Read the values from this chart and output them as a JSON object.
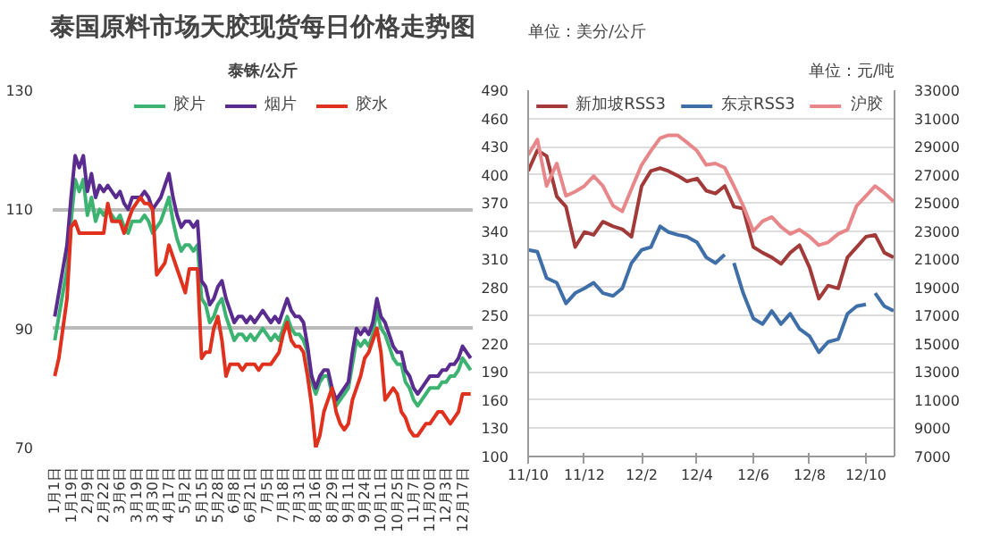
{
  "chart_data": [
    {
      "type": "line",
      "title": "泰国原料市场天胶现货每日价格走势图",
      "subtitle": "泰铢/公斤",
      "categories": [
        "1月1日",
        null,
        null,
        null,
        "1月19日",
        null,
        null,
        null,
        "2月9日",
        null,
        null,
        null,
        "2月22日",
        null,
        null,
        null,
        "3月6日",
        null,
        null,
        null,
        "3月19日",
        null,
        null,
        null,
        "3月30日",
        null,
        null,
        null,
        "4月17日",
        null,
        null,
        null,
        "5月2日",
        null,
        null,
        null,
        "5月15日",
        null,
        null,
        null,
        "5月28日",
        null,
        null,
        null,
        "6月8日",
        null,
        null,
        null,
        "6月21日",
        null,
        null,
        null,
        "7月5日",
        null,
        null,
        null,
        "7月18日",
        null,
        null,
        null,
        "7月31日",
        null,
        null,
        null,
        "8月16日",
        null,
        null,
        null,
        "8月29日",
        null,
        null,
        null,
        "9月11日",
        null,
        null,
        null,
        "9月24日",
        null,
        null,
        null,
        "10月11日",
        null,
        null,
        null,
        "10月25日",
        null,
        null,
        null,
        "11月7日",
        null,
        null,
        null,
        "11月20日",
        null,
        null,
        null,
        "12月3日",
        null,
        null,
        null,
        "12月17日",
        null,
        null
      ],
      "series": [
        {
          "name": "胶片",
          "color": "#3cb371",
          "values": [
            88,
            92,
            96,
            100,
            108,
            115,
            113,
            115,
            109,
            112,
            108,
            110,
            109,
            110,
            109,
            108,
            109,
            107,
            106,
            108,
            108,
            108,
            109,
            108,
            106,
            107,
            108,
            110,
            112,
            108,
            105,
            103,
            104,
            104,
            103,
            104,
            95,
            94,
            91,
            92,
            94,
            95,
            92,
            90,
            88,
            89,
            89,
            88,
            89,
            88,
            89,
            90,
            89,
            88,
            89,
            88,
            90,
            92,
            90,
            89,
            89,
            88,
            86,
            81,
            79,
            81,
            82,
            82,
            79,
            77,
            78,
            79,
            80,
            84,
            88,
            87,
            88,
            87,
            89,
            93,
            90,
            89,
            87,
            85,
            84,
            84,
            81,
            80,
            78,
            77,
            78,
            79,
            80,
            80,
            80,
            81,
            81,
            82,
            82,
            83,
            85,
            84,
            83
          ]
        },
        {
          "name": "烟片",
          "color": "#5b2c8f",
          "values": [
            92,
            96,
            100,
            104,
            112,
            119,
            117,
            119,
            113,
            116,
            112,
            114,
            113,
            114,
            113,
            112,
            113,
            111,
            110,
            112,
            112,
            112,
            113,
            112,
            110,
            111,
            112,
            114,
            116,
            112,
            109,
            107,
            108,
            108,
            107,
            108,
            98,
            97,
            94,
            95,
            97,
            98,
            95,
            93,
            91,
            92,
            92,
            91,
            92,
            91,
            92,
            93,
            92,
            91,
            92,
            91,
            93,
            95,
            93,
            92,
            92,
            91,
            87,
            82,
            80,
            82,
            83,
            83,
            80,
            78,
            79,
            80,
            81,
            86,
            90,
            89,
            90,
            89,
            91,
            95,
            92,
            91,
            89,
            87,
            86,
            86,
            83,
            82,
            80,
            79,
            80,
            81,
            82,
            82,
            82,
            83,
            83,
            84,
            84,
            85,
            87,
            86,
            85
          ]
        },
        {
          "name": "胶水",
          "color": "#e0301e",
          "values": [
            82,
            85,
            90,
            95,
            107,
            108,
            106,
            106,
            106,
            106,
            106,
            106,
            106,
            111,
            108,
            108,
            108,
            106,
            108,
            110,
            111,
            112,
            111,
            111,
            110,
            99,
            100,
            101,
            104,
            102,
            100,
            98,
            96,
            100,
            100,
            100,
            85,
            86,
            86,
            90,
            92,
            88,
            82,
            84,
            84,
            84,
            83,
            84,
            84,
            84,
            83,
            84,
            84,
            84,
            85,
            86,
            89,
            91,
            88,
            87,
            87,
            86,
            82,
            77,
            70,
            72,
            76,
            78,
            80,
            76,
            74,
            73,
            74,
            78,
            80,
            82,
            85,
            86,
            88,
            90,
            86,
            78,
            79,
            80,
            79,
            76,
            75,
            73,
            72,
            72,
            73,
            74,
            74,
            75,
            76,
            76,
            75,
            74,
            75,
            76,
            79,
            79,
            79
          ]
        }
      ],
      "ylim": [
        70,
        130
      ],
      "yticks": [
        70,
        90,
        110,
        130
      ],
      "grid": "y",
      "legend": "top"
    },
    {
      "type": "line",
      "ylabel": "单位：美分/公斤",
      "y2label": "单位：元/吨",
      "x": [
        "2011-10-01",
        "2011-10-11",
        "2011-10-21",
        "2011-11-01",
        "2011-11-11",
        "2011-11-21",
        "2011-12-01",
        "2011-12-11",
        "2011-12-21",
        "2012-01-01",
        "2012-01-11",
        "2012-01-21",
        "2012-02-01",
        "2012-02-11",
        "2012-02-21",
        "2012-03-01",
        "2012-03-11",
        "2012-03-21",
        "2012-04-01",
        "2012-04-11",
        "2012-04-21",
        "2012-05-01",
        "2012-05-11",
        "2012-05-21",
        "2012-06-01",
        "2012-06-11",
        "2012-06-21",
        "2012-07-01",
        "2012-07-11",
        "2012-07-21",
        "2012-08-01",
        "2012-08-11",
        "2012-08-21",
        "2012-09-01",
        "2012-09-11",
        "2012-09-21",
        "2012-10-01",
        "2012-10-11",
        "2012-10-21",
        "2012-10-31"
      ],
      "series": [
        {
          "name": "新加坡RSS3",
          "color": "#a33a3a",
          "values": [
            404,
            426,
            420,
            377,
            366,
            323,
            339,
            336,
            350,
            345,
            342,
            334,
            388,
            404,
            407,
            404,
            399,
            393,
            396,
            383,
            380,
            388,
            366,
            364,
            323,
            317,
            312,
            305,
            317,
            325,
            301,
            268,
            282,
            279,
            312,
            323,
            334,
            336,
            317,
            312
          ]
        },
        {
          "name": "东京RSS3",
          "color": "#3f6fa8",
          "x": [
            "2011-10-01",
            "2011-10-11",
            "2011-10-21",
            "2011-11-01",
            "2011-11-11",
            "2011-11-21",
            "2011-12-01",
            "2011-12-11",
            "2011-12-21",
            "2012-01-01",
            "2012-01-11",
            "2012-01-21",
            "2012-02-01",
            "2012-02-11",
            "2012-02-21",
            "2012-03-01",
            "2012-03-11",
            "2012-03-21",
            "2012-04-01",
            "2012-04-11",
            "2012-04-21",
            "2012-05-01",
            "2012-05-06",
            "2012-05-11",
            "2012-05-21",
            "2012-06-01",
            "2012-06-11",
            "2012-06-21",
            "2012-07-01",
            "2012-07-11",
            "2012-07-21",
            "2012-08-01",
            "2012-08-11",
            "2012-08-21",
            "2012-09-01",
            "2012-09-11",
            "2012-09-21",
            "2012-10-01",
            "2012-10-06",
            "2012-10-11",
            "2012-10-21",
            "2012-10-31"
          ],
          "values": [
            320,
            318,
            290,
            285,
            263,
            274,
            279,
            285,
            274,
            271,
            279,
            306,
            320,
            323,
            345,
            339,
            336,
            334,
            328,
            312,
            306,
            315,
            null,
            306,
            274,
            247,
            241,
            255,
            241,
            252,
            236,
            228,
            211,
            222,
            225,
            252,
            260,
            262,
            null,
            274,
            260,
            255
          ]
        },
        {
          "name": "沪胶",
          "color": "#e8878a",
          "axis": "y2",
          "values": [
            28400,
            29500,
            26200,
            27800,
            25500,
            25800,
            26200,
            26900,
            26200,
            24800,
            24400,
            26000,
            27700,
            28700,
            29600,
            29800,
            29800,
            29300,
            28700,
            27700,
            27800,
            27500,
            26200,
            24800,
            23000,
            23700,
            24000,
            23300,
            22800,
            23100,
            22600,
            22000,
            22200,
            22800,
            23100,
            24800,
            25500,
            26200,
            25700,
            25100
          ]
        }
      ],
      "xlim": [
        "2011-10-01",
        "2012-11-01"
      ],
      "xticks": [
        {
          "value": "2011-10-01",
          "label": "11/10"
        },
        {
          "value": "2011-12-01",
          "label": "11/12"
        },
        {
          "value": "2012-02-01",
          "label": "12/2"
        },
        {
          "value": "2012-04-01",
          "label": "12/4"
        },
        {
          "value": "2012-06-01",
          "label": "12/6"
        },
        {
          "value": "2012-08-01",
          "label": "12/8"
        },
        {
          "value": "2012-10-01",
          "label": "12/10"
        }
      ],
      "ylim": [
        100,
        490
      ],
      "yticks": [
        100,
        130,
        160,
        190,
        220,
        250,
        280,
        310,
        340,
        370,
        400,
        430,
        460,
        490
      ],
      "y2lim": [
        7000,
        33000
      ],
      "y2ticks": [
        7000,
        9000,
        11000,
        13000,
        15000,
        17000,
        19000,
        21000,
        23000,
        25000,
        27000,
        29000,
        31000,
        33000
      ],
      "grid": "y",
      "legend": "top"
    }
  ]
}
